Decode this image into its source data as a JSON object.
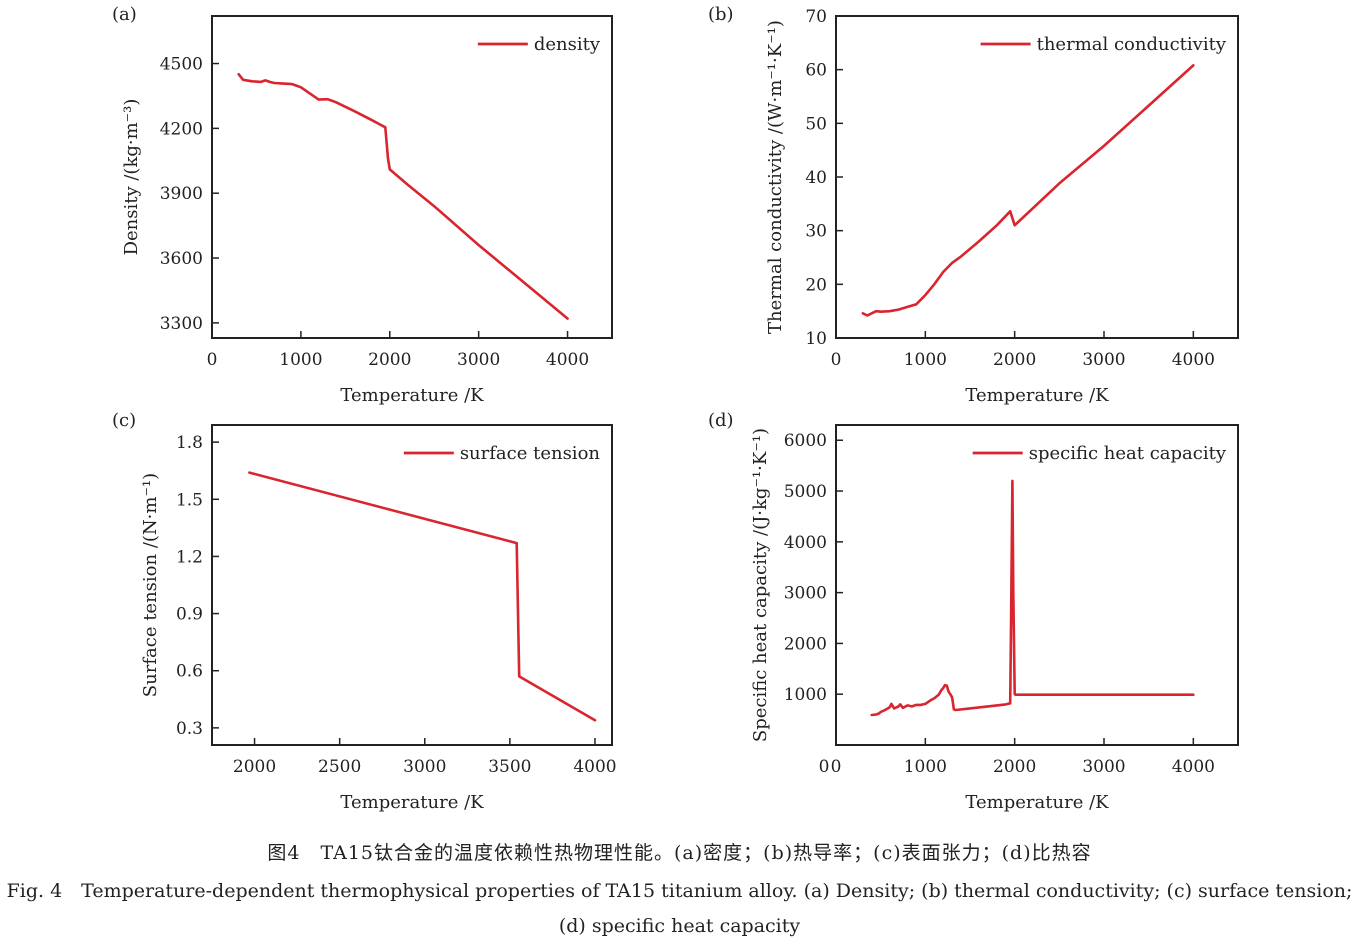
{
  "chart_data": [
    {
      "id": "a",
      "type": "line",
      "panel_label": "(a)",
      "xlabel": "Temperature /K",
      "ylabel": "Density /(kg·m⁻³)",
      "xlim": [
        0,
        4500
      ],
      "ylim": [
        3230,
        4720
      ],
      "xticks": [
        0,
        1000,
        2000,
        3000,
        4000
      ],
      "yticks": [
        3300,
        3600,
        3900,
        4200,
        4500
      ],
      "legend_position": "top-right",
      "color": "#d9252f",
      "series": [
        {
          "name": "density",
          "x": [
            300,
            350,
            450,
            550,
            600,
            650,
            700,
            800,
            900,
            950,
            1000,
            1100,
            1200,
            1300,
            1400,
            1600,
            1800,
            1950,
            1980,
            2000,
            2200,
            2500,
            3000,
            3500,
            4000
          ],
          "y": [
            4450,
            4425,
            4418,
            4415,
            4422,
            4415,
            4410,
            4407,
            4405,
            4398,
            4390,
            4362,
            4333,
            4335,
            4320,
            4280,
            4238,
            4205,
            4060,
            4010,
            3940,
            3840,
            3660,
            3490,
            3320
          ]
        }
      ]
    },
    {
      "id": "b",
      "type": "line",
      "panel_label": "(b)",
      "xlabel": "Temperature /K",
      "ylabel": "Thermal conductivity /(W·m⁻¹·K⁻¹)",
      "xlim": [
        0,
        4500
      ],
      "ylim": [
        10,
        70
      ],
      "xticks": [
        0,
        1000,
        2000,
        3000,
        4000
      ],
      "yticks": [
        10,
        20,
        30,
        40,
        50,
        60,
        70
      ],
      "legend_position": "top-right",
      "color": "#d9252f",
      "series": [
        {
          "name": "thermal conductivity",
          "x": [
            300,
            350,
            400,
            450,
            500,
            600,
            700,
            800,
            900,
            1000,
            1100,
            1200,
            1300,
            1400,
            1600,
            1800,
            1950,
            2000,
            2500,
            3000,
            3500,
            4000
          ],
          "y": [
            14.6,
            14.2,
            14.6,
            15.0,
            14.9,
            15.0,
            15.3,
            15.8,
            16.3,
            18.0,
            20.0,
            22.3,
            24.0,
            25.2,
            28.0,
            31.0,
            33.6,
            31.0,
            38.8,
            45.8,
            53.3,
            60.8
          ]
        }
      ]
    },
    {
      "id": "c",
      "type": "line",
      "panel_label": "(c)",
      "xlabel": "Temperature /K",
      "ylabel": "Surface tension /(N·m⁻¹)",
      "xlim": [
        1750,
        4100
      ],
      "ylim": [
        0.21,
        1.89
      ],
      "xticks": [
        2000,
        2500,
        3000,
        3500,
        4000
      ],
      "yticks": [
        0.3,
        0.6,
        0.9,
        1.2,
        1.5,
        1.8
      ],
      "legend_position": "top-right",
      "color": "#d9252f",
      "series": [
        {
          "name": "surface tension",
          "x": [
            1970,
            3540,
            3555,
            4000
          ],
          "y": [
            1.64,
            1.27,
            0.57,
            0.34
          ]
        }
      ]
    },
    {
      "id": "d",
      "type": "line",
      "panel_label": "(d)",
      "xlabel": "Temperature /K",
      "ylabel": "Specific heat capacity /(J·kg⁻¹·K⁻¹)",
      "xlim": [
        0,
        4500
      ],
      "ylim": [
        0,
        6300
      ],
      "xticks": [
        0,
        1000,
        2000,
        3000,
        4000
      ],
      "yticks": [
        1000,
        2000,
        3000,
        4000,
        5000,
        6000
      ],
      "y_zero_label_at_origin": "0",
      "legend_position": "top-right",
      "color": "#d9252f",
      "series": [
        {
          "name": "specific heat capacity",
          "x": [
            400,
            450,
            480,
            500,
            550,
            600,
            620,
            650,
            700,
            720,
            750,
            800,
            850,
            900,
            950,
            1000,
            1050,
            1100,
            1150,
            1180,
            1200,
            1220,
            1240,
            1260,
            1280,
            1300,
            1320,
            1340,
            1500,
            1700,
            1900,
            1950,
            1960,
            1975,
            1985,
            2000,
            2010,
            2500,
            3000,
            3500,
            4000
          ],
          "y": [
            590,
            600,
            620,
            650,
            690,
            740,
            810,
            720,
            760,
            800,
            730,
            780,
            760,
            790,
            790,
            810,
            870,
            920,
            990,
            1080,
            1120,
            1180,
            1170,
            1050,
            1000,
            940,
            700,
            690,
            720,
            760,
            800,
            820,
            2500,
            5200,
            3000,
            1000,
            990,
            990,
            990,
            990,
            990
          ]
        }
      ]
    }
  ],
  "caption": {
    "cn": "图4　TA15钛合金的温度依赖性热物理性能。(a)密度；(b)热导率；(c)表面张力；(d)比热容",
    "en": "Fig. 4　Temperature-dependent thermophysical properties of TA15 titanium alloy. (a) Density; (b) thermal conductivity; (c) surface tension; (d) specific heat capacity"
  }
}
